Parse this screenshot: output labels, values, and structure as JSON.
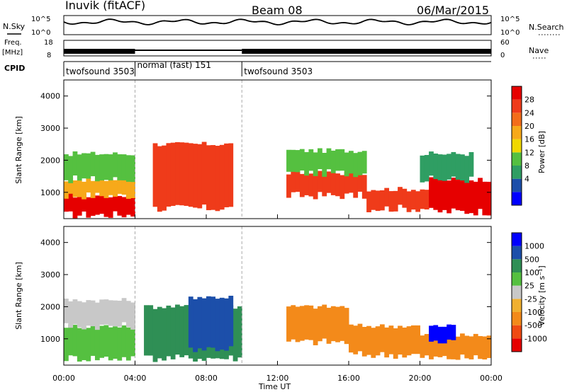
{
  "header": {
    "station": "Inuvik (fitACF)",
    "beam": "Beam 08",
    "date": "06/Mar/2015"
  },
  "top_panels": {
    "nsky_label": "N.Sky",
    "nsearch_label": "N.Search",
    "log_ticks": [
      "10^5",
      "10^0"
    ],
    "freq_label_line1": "Freq.",
    "freq_label_line2": "[MHz]",
    "freq_ticks": [
      "18",
      "8"
    ],
    "nave_label": "Nave",
    "nave_ticks": [
      "60",
      "0"
    ],
    "cpid_label": "CPID",
    "cpid_segments": [
      {
        "name": "twofsound 3503",
        "start_hour": 0,
        "end_hour": 4
      },
      {
        "name": "normal (fast) 151",
        "start_hour": 4,
        "end_hour": 10
      },
      {
        "name": "twofsound 3503",
        "start_hour": 10,
        "end_hour": 24
      }
    ]
  },
  "x_axis": {
    "label": "Time UT",
    "ticks": [
      "00:00",
      "04:00",
      "08:00",
      "12:00",
      "16:00",
      "20:00",
      "00:00"
    ],
    "range_hours": [
      0,
      24
    ]
  },
  "chart_data": [
    {
      "type": "heatmap",
      "name": "Power",
      "ylabel": "Slant Range [km]",
      "ylim": [
        180,
        4500
      ],
      "yticks": [
        "4000",
        "3000",
        "2000",
        "1000"
      ],
      "colorbar_label": "Power [dB]",
      "colorbar_ticks": [
        "28",
        "24",
        "20",
        "16",
        "12",
        "8",
        "4"
      ],
      "colors": [
        "#0000ff",
        "#1c4faa",
        "#2f9e63",
        "#55c040",
        "#f0d800",
        "#f7a91a",
        "#f36d1a",
        "#ef3b1a",
        "#e60000"
      ],
      "bands": [
        {
          "t0": 0.0,
          "t1": 4.0,
          "r0": 300,
          "r1": 900,
          "level": 8
        },
        {
          "t0": 0.0,
          "t1": 4.0,
          "r0": 900,
          "r1": 1400,
          "level": 5
        },
        {
          "t0": 0.0,
          "t1": 4.0,
          "r0": 1400,
          "r1": 2200,
          "level": 3
        },
        {
          "t0": 5.0,
          "t1": 9.5,
          "r0": 500,
          "r1": 2500,
          "level": 7
        },
        {
          "t0": 12.5,
          "t1": 17.0,
          "r0": 900,
          "r1": 1600,
          "level": 7
        },
        {
          "t0": 12.5,
          "t1": 17.0,
          "r0": 1600,
          "r1": 2300,
          "level": 3
        },
        {
          "t0": 17.0,
          "t1": 20.5,
          "r0": 500,
          "r1": 1100,
          "level": 7
        },
        {
          "t0": 20.5,
          "t1": 24.0,
          "r0": 400,
          "r1": 1400,
          "level": 8
        },
        {
          "t0": 20.0,
          "t1": 23.0,
          "r0": 1400,
          "r1": 2200,
          "level": 2
        }
      ]
    },
    {
      "type": "heatmap",
      "name": "Velocity",
      "ylabel": "Slant Range [km]",
      "ylim": [
        180,
        4500
      ],
      "yticks": [
        "4000",
        "3000",
        "2000",
        "1000"
      ],
      "colorbar_label": "Velocity [m s⁻¹]",
      "colorbar_ticks": [
        "1000",
        "500",
        "100",
        "25",
        "-25",
        "-100",
        "-500",
        "-1000"
      ],
      "colors": [
        "#e60000",
        "#ef4a12",
        "#f38a1a",
        "#f0b030",
        "#c8c8c8",
        "#55c040",
        "#2f8f55",
        "#1c4faa",
        "#0000ff"
      ],
      "bands": [
        {
          "t0": 0.0,
          "t1": 4.0,
          "r0": 400,
          "r1": 1400,
          "level": 5
        },
        {
          "t0": 0.0,
          "t1": 4.0,
          "r0": 1400,
          "r1": 2200,
          "level": 4
        },
        {
          "t0": 4.5,
          "t1": 10.0,
          "r0": 400,
          "r1": 2000,
          "level": 6
        },
        {
          "t0": 7.0,
          "t1": 9.5,
          "r0": 700,
          "r1": 2300,
          "level": 7
        },
        {
          "t0": 12.5,
          "t1": 16.0,
          "r0": 900,
          "r1": 2000,
          "level": 2
        },
        {
          "t0": 16.0,
          "t1": 20.0,
          "r0": 500,
          "r1": 1400,
          "level": 2
        },
        {
          "t0": 20.0,
          "t1": 24.0,
          "r0": 400,
          "r1": 1100,
          "level": 2
        },
        {
          "t0": 20.5,
          "t1": 22.0,
          "r0": 900,
          "r1": 1400,
          "level": 8
        }
      ]
    }
  ]
}
